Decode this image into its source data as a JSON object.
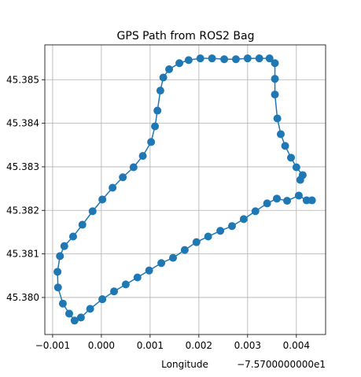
{
  "chart_data": {
    "type": "line",
    "title": "GPS Path from ROS2 Bag",
    "xlabel": "Longitude",
    "x_offset_label": "−7.5700000000e1",
    "color": "#1f77b4",
    "grid": true,
    "markers": true,
    "xlim": [
      -0.00116,
      0.0046
    ],
    "xticks": [
      {
        "value": -0.001,
        "label": "−0.001"
      },
      {
        "value": 0,
        "label": "0.000"
      },
      {
        "value": 0.001,
        "label": "0.001"
      },
      {
        "value": 0.002,
        "label": "0.002"
      },
      {
        "value": 0.003,
        "label": "0.003"
      },
      {
        "value": 0.004,
        "label": "0.004"
      }
    ],
    "ylim": [
      45.37915,
      45.3858
    ],
    "yticks": [
      {
        "value": 45.38,
        "label": "45.380"
      },
      {
        "value": 45.381,
        "label": "45.381"
      },
      {
        "value": 45.382,
        "label": "45.382"
      },
      {
        "value": 45.383,
        "label": "45.383"
      },
      {
        "value": 45.384,
        "label": "45.384"
      },
      {
        "value": 45.385,
        "label": "45.385"
      }
    ],
    "x": [
      0.00432,
      0.00421,
      0.00405,
      0.00381,
      0.0036,
      0.0034,
      0.00316,
      0.00292,
      0.00268,
      0.00244,
      0.00219,
      0.00195,
      0.00171,
      0.00147,
      0.00123,
      0.00098,
      0.00074,
      0.0005,
      0.00026,
      2e-05,
      -0.00023,
      -0.00042,
      -0.00055,
      -0.00066,
      -0.00079,
      -0.00089,
      -0.0009,
      -0.00085,
      -0.00076,
      -0.00058,
      -0.00039,
      -0.00018,
      2e-05,
      0.00023,
      0.00044,
      0.00066,
      0.00085,
      0.00102,
      0.0011,
      0.00115,
      0.00121,
      0.00127,
      0.00139,
      0.0016,
      0.00179,
      0.00203,
      0.00227,
      0.00252,
      0.00276,
      0.003,
      0.00324,
      0.00345,
      0.00356,
      0.00356,
      0.00356,
      0.00361,
      0.00368,
      0.00377,
      0.00389,
      0.004,
      0.00413,
      0.00408
    ],
    "values": [
      45.38223,
      45.38223,
      45.38234,
      45.38222,
      45.38227,
      45.38216,
      45.38198,
      45.3818,
      45.38164,
      45.38153,
      45.3814,
      45.38127,
      45.38109,
      45.38091,
      45.38079,
      45.38062,
      45.38046,
      45.3803,
      45.38014,
      45.37996,
      45.37974,
      45.37954,
      45.37947,
      45.37963,
      45.37986,
      45.38023,
      45.38059,
      45.38095,
      45.38118,
      45.3814,
      45.38167,
      45.38198,
      45.38225,
      45.38252,
      45.38276,
      45.38299,
      45.38325,
      45.38357,
      45.38393,
      45.38429,
      45.38475,
      45.38505,
      45.38524,
      45.38538,
      45.38545,
      45.38549,
      45.38549,
      45.38547,
      45.38547,
      45.38549,
      45.38549,
      45.38549,
      45.38538,
      45.38502,
      45.38466,
      45.38411,
      45.38375,
      45.38348,
      45.38321,
      45.38299,
      45.38281,
      45.3827
    ]
  }
}
